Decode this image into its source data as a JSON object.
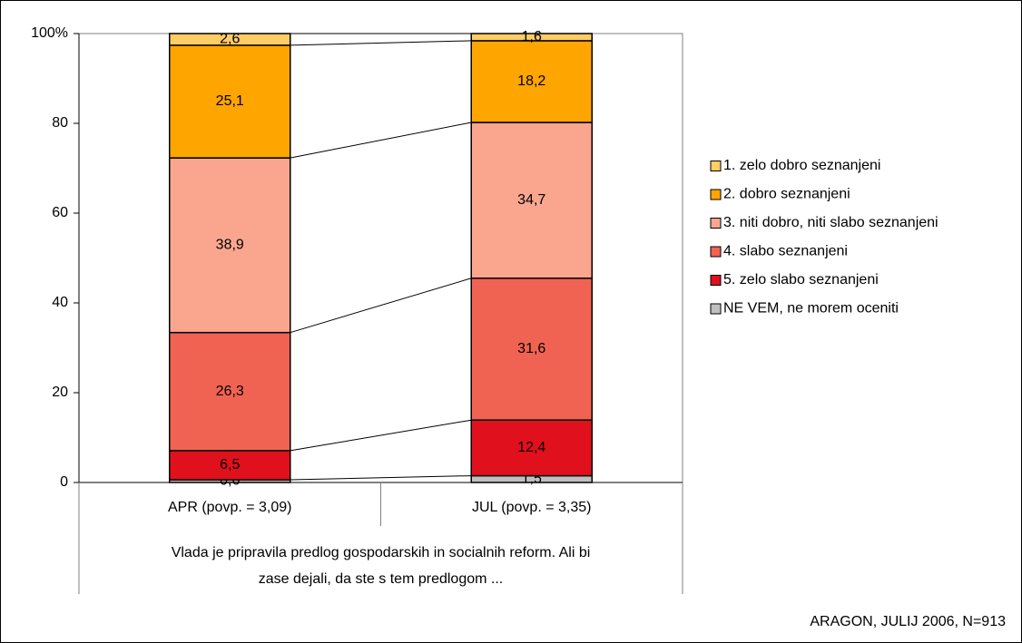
{
  "chart_data": {
    "type": "stacked_bar",
    "categories": [
      "APR (povp. = 3,09)",
      "JUL (povp. = 3,35)"
    ],
    "series": [
      {
        "name": "1. zelo dobro seznanjeni",
        "color": "#ffcc66",
        "values": [
          2.6,
          1.6
        ],
        "value_labels": [
          "2,6",
          "1,6"
        ]
      },
      {
        "name": "2. dobro seznanjeni",
        "color": "#ffa500",
        "values": [
          25.1,
          18.2
        ],
        "value_labels": [
          "25,1",
          "18,2"
        ]
      },
      {
        "name": "3. niti dobro, niti slabo seznanjeni",
        "color": "#faa68f",
        "values": [
          38.9,
          34.7
        ],
        "value_labels": [
          "38,9",
          "34,7"
        ]
      },
      {
        "name": "4. slabo seznanjeni",
        "color": "#f06352",
        "values": [
          26.3,
          31.6
        ],
        "value_labels": [
          "26,3",
          "31,6"
        ]
      },
      {
        "name": "5. zelo slabo seznanjeni",
        "color": "#e0101c",
        "values": [
          6.5,
          12.4
        ],
        "value_labels": [
          "6,5",
          "12,4"
        ]
      },
      {
        "name": "NE VEM, ne morem oceniti",
        "color": "#c0c0c0",
        "values": [
          0.6,
          1.5
        ],
        "value_labels": [
          "0,6",
          "1,5"
        ]
      }
    ],
    "ylim": [
      0,
      100
    ],
    "yticks": [
      0,
      20,
      40,
      60,
      80,
      {
        "value": 100,
        "label": "100%"
      }
    ],
    "xlabel": [
      "Vlada je pripravila predlog gospodarskih in socialnih reform. Ali bi",
      "zase dejali, da ste s tem predlogom ..."
    ],
    "source": "ARAGON, JULIJ 2006, N=913",
    "legend": "right"
  }
}
